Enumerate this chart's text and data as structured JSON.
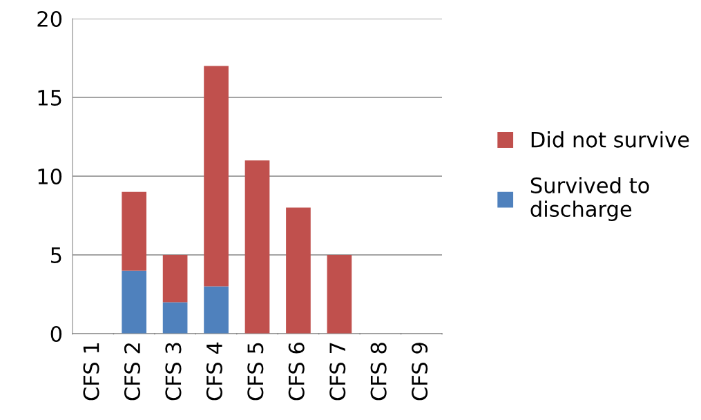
{
  "chart_data": {
    "type": "bar",
    "stacked": true,
    "categories": [
      "CFS 1",
      "CFS 2",
      "CFS 3",
      "CFS 4",
      "CFS 5",
      "CFS 6",
      "CFS 7",
      "CFS 8",
      "CFS 9"
    ],
    "series": [
      {
        "name": "Survived to discharge",
        "color": "#4f81bd",
        "values": [
          0,
          4,
          2,
          3,
          0,
          0,
          0,
          0,
          0
        ]
      },
      {
        "name": "Did not survive",
        "color": "#c0504d",
        "values": [
          0,
          5,
          3,
          14,
          11,
          8,
          5,
          0,
          0
        ]
      }
    ],
    "ylim": [
      0,
      20
    ],
    "yticks": [
      0,
      5,
      10,
      15,
      20
    ],
    "grid": "y",
    "legend": "right"
  }
}
